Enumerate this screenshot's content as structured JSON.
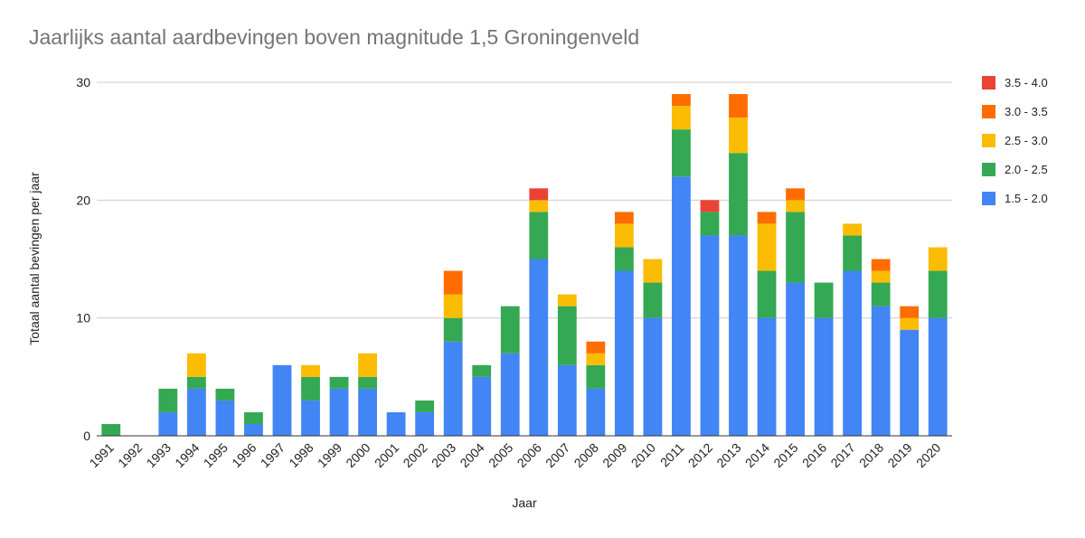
{
  "chart_data": {
    "type": "bar",
    "stacked": true,
    "title": "Jaarlijks aantal aardbevingen boven magnitude 1,5 Groningenveld",
    "xlabel": "Jaar",
    "ylabel": "Totaal aantal bevingen per jaar",
    "ylim": [
      0,
      30
    ],
    "yticks": [
      0,
      10,
      20,
      30
    ],
    "grid": true,
    "legend_position": "right",
    "categories": [
      "1991",
      "1992",
      "1993",
      "1994",
      "1995",
      "1996",
      "1997",
      "1998",
      "1999",
      "2000",
      "2001",
      "2002",
      "2003",
      "2004",
      "2005",
      "2006",
      "2007",
      "2008",
      "2009",
      "2010",
      "2011",
      "2012",
      "2013",
      "2014",
      "2015",
      "2016",
      "2017",
      "2018",
      "2019",
      "2020"
    ],
    "series": [
      {
        "name": "1.5 - 2.0",
        "color": "#4285F4",
        "values": [
          0,
          0,
          2,
          4,
          3,
          1,
          6,
          3,
          4,
          4,
          2,
          2,
          8,
          5,
          7,
          15,
          6,
          4,
          14,
          10,
          22,
          17,
          17,
          10,
          13,
          10,
          14,
          11,
          9,
          10
        ]
      },
      {
        "name": "2.0 - 2.5",
        "color": "#34A853",
        "values": [
          1,
          0,
          2,
          1,
          1,
          1,
          0,
          2,
          1,
          1,
          0,
          1,
          2,
          1,
          4,
          4,
          5,
          2,
          2,
          3,
          4,
          2,
          7,
          4,
          6,
          3,
          3,
          2,
          0,
          4
        ]
      },
      {
        "name": "2.5 - 3.0",
        "color": "#FBBC04",
        "values": [
          0,
          0,
          0,
          2,
          0,
          0,
          0,
          1,
          0,
          2,
          0,
          0,
          2,
          0,
          0,
          1,
          1,
          1,
          2,
          2,
          2,
          0,
          3,
          4,
          1,
          0,
          1,
          1,
          1,
          2
        ]
      },
      {
        "name": "3.0 - 3.5",
        "color": "#FF6D01",
        "values": [
          0,
          0,
          0,
          0,
          0,
          0,
          0,
          0,
          0,
          0,
          0,
          0,
          2,
          0,
          0,
          0,
          0,
          1,
          1,
          0,
          1,
          0,
          2,
          1,
          1,
          0,
          0,
          1,
          1,
          0
        ]
      },
      {
        "name": "3.5 - 4.0",
        "color": "#EA4335",
        "values": [
          0,
          0,
          0,
          0,
          0,
          0,
          0,
          0,
          0,
          0,
          0,
          0,
          0,
          0,
          0,
          1,
          0,
          0,
          0,
          0,
          0,
          1,
          0,
          0,
          0,
          0,
          0,
          0,
          0,
          0
        ]
      }
    ]
  }
}
